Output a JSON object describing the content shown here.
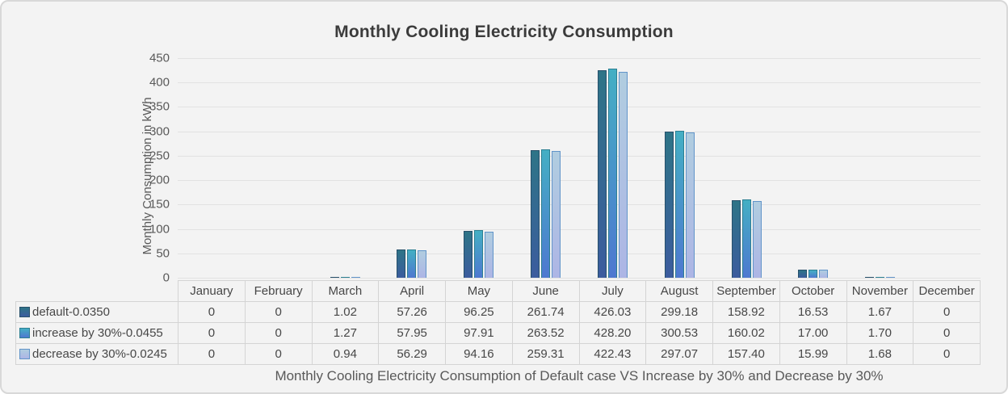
{
  "title": "Monthly Cooling Electricity Consumption",
  "caption": "Monthly Cooling Electricity Consumption of Default case VS Increase by 30% and Decrease by 30%",
  "colors": {
    "background": "#f3f3f3",
    "frame_border": "#d8d8d8",
    "gridline": "#e2e2e2",
    "tick_text": "#595959",
    "title_text": "#3b3b3b",
    "table_border": "#d4d4d4",
    "table_text": "#474747"
  },
  "chart_data": {
    "type": "bar",
    "title": "Monthly Cooling Electricity Consumption",
    "xlabel": "",
    "ylabel": "Monthly Consumption in kWh",
    "ylim": [
      0,
      450
    ],
    "ytick_step": 50,
    "grid": true,
    "legend_position": "data-table-left",
    "categories": [
      "January",
      "February",
      "March",
      "April",
      "May",
      "June",
      "July",
      "August",
      "September",
      "October",
      "November",
      "December"
    ],
    "series": [
      {
        "name": "default-0.0350",
        "values": [
          0,
          0,
          1.02,
          57.26,
          96.25,
          261.74,
          426.03,
          299.18,
          158.92,
          16.53,
          1.67,
          0
        ],
        "display": [
          "0",
          "0",
          "1.02",
          "57.26",
          "96.25",
          "261.74",
          "426.03",
          "299.18",
          "158.92",
          "16.53",
          "1.67",
          "0"
        ],
        "color_top": "#2e7487",
        "color_bottom": "#3c5c9e",
        "color_border": "#27506b"
      },
      {
        "name": "increase by 30%-0.0455",
        "values": [
          0,
          0,
          1.27,
          57.95,
          97.91,
          263.52,
          428.2,
          300.53,
          160.02,
          17.0,
          1.7,
          0
        ],
        "display": [
          "0",
          "0",
          "1.27",
          "57.95",
          "97.91",
          "263.52",
          "428.20",
          "300.53",
          "160.02",
          "17.00",
          "1.70",
          "0"
        ],
        "color_top": "#44afc4",
        "color_bottom": "#4e78d0",
        "color_border": "#2c7f92"
      },
      {
        "name": "decrease by 30%-0.0245",
        "values": [
          0,
          0,
          0.94,
          56.29,
          94.16,
          259.31,
          422.43,
          297.07,
          157.4,
          15.99,
          1.68,
          0
        ],
        "display": [
          "0",
          "0",
          "0.94",
          "56.29",
          "94.16",
          "259.31",
          "422.43",
          "297.07",
          "157.40",
          "15.99",
          "1.68",
          "0"
        ],
        "color_top": "#b0cde0",
        "color_bottom": "#adb5e5",
        "color_border": "#6194c9"
      }
    ]
  }
}
